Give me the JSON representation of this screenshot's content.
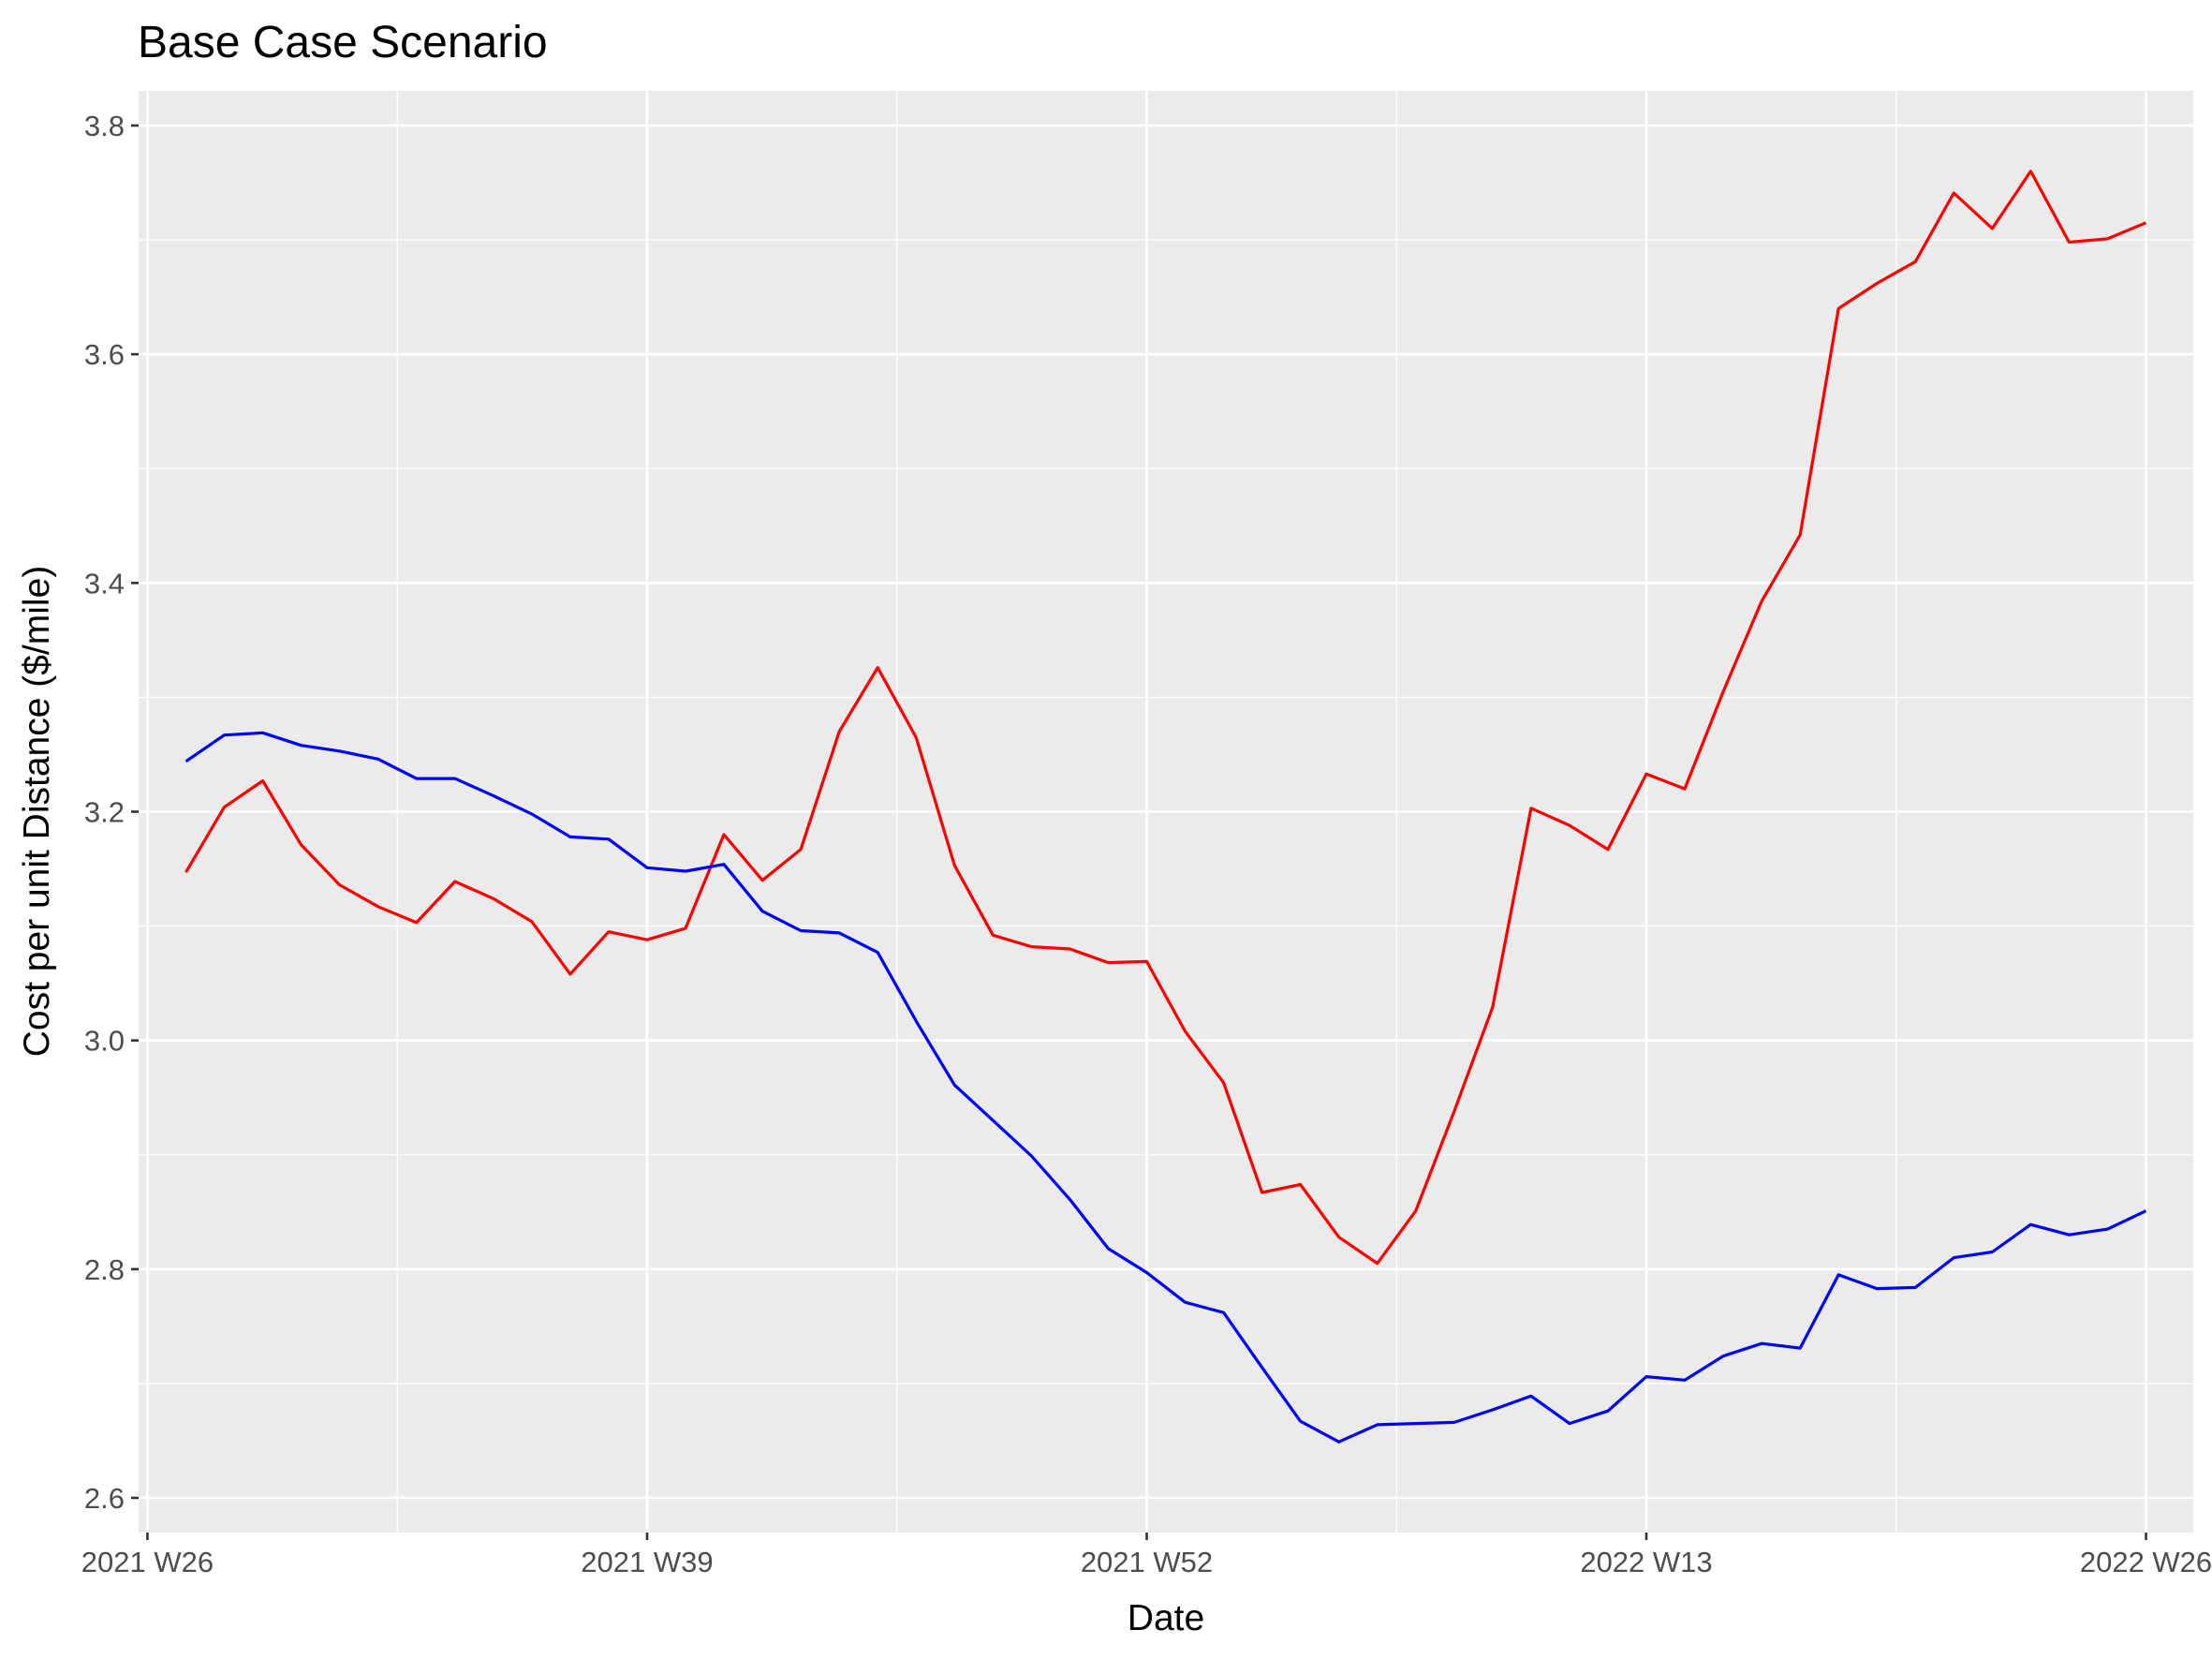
{
  "chart_data": {
    "type": "line",
    "title": "Base Case Scenario",
    "xlabel": "Date",
    "ylabel": "Cost per unit Distance ($/mile)",
    "x_unit": "ISO week",
    "x_ticks": [
      {
        "value": "2021-W26",
        "label": "2021 W26"
      },
      {
        "value": "2021-W39",
        "label": "2021 W39"
      },
      {
        "value": "2021-W52",
        "label": "2021 W52"
      },
      {
        "value": "2022-W13",
        "label": "2022 W13"
      },
      {
        "value": "2022-W26",
        "label": "2022 W26"
      }
    ],
    "xlim": [
      "2021-W26",
      "2022-W27"
    ],
    "y_ticks": [
      2.6,
      2.8,
      3.0,
      3.2,
      3.4,
      3.6,
      3.8
    ],
    "y_tick_labels": [
      "2.6",
      "2.8",
      "3.0",
      "3.2",
      "3.4",
      "3.6",
      "3.8"
    ],
    "ylim": [
      2.6,
      3.8
    ],
    "grid": true,
    "background": "#ebebeb",
    "x": [
      "2021-W27",
      "2021-W28",
      "2021-W29",
      "2021-W30",
      "2021-W31",
      "2021-W32",
      "2021-W33",
      "2021-W34",
      "2021-W35",
      "2021-W36",
      "2021-W37",
      "2021-W38",
      "2021-W39",
      "2021-W40",
      "2021-W41",
      "2021-W42",
      "2021-W43",
      "2021-W44",
      "2021-W45",
      "2021-W46",
      "2021-W47",
      "2021-W48",
      "2021-W49",
      "2021-W50",
      "2021-W51",
      "2021-W52",
      "2022-W01",
      "2022-W02",
      "2022-W03",
      "2022-W04",
      "2022-W05",
      "2022-W06",
      "2022-W07",
      "2022-W08",
      "2022-W09",
      "2022-W10",
      "2022-W11",
      "2022-W12",
      "2022-W13",
      "2022-W14",
      "2022-W15",
      "2022-W16",
      "2022-W17",
      "2022-W18",
      "2022-W19",
      "2022-W20",
      "2022-W21",
      "2022-W22",
      "2022-W23",
      "2022-W24",
      "2022-W25",
      "2022-W26"
    ],
    "series": [
      {
        "color": "#ff0000",
        "values": [
          3.147,
          3.204,
          3.227,
          3.171,
          3.136,
          3.117,
          3.103,
          3.139,
          3.124,
          3.104,
          3.058,
          3.095,
          3.088,
          3.098,
          3.18,
          3.14,
          3.167,
          3.27,
          3.326,
          3.265,
          3.153,
          3.092,
          3.082,
          3.08,
          3.068,
          3.069,
          3.008,
          2.963,
          2.867,
          2.874,
          2.828,
          2.805,
          2.851,
          2.938,
          3.029,
          3.203,
          3.188,
          3.167,
          3.233,
          3.22,
          3.305,
          3.384,
          3.442,
          3.64,
          3.662,
          3.681,
          3.741,
          3.71,
          3.76,
          3.698,
          3.701,
          3.715
        ]
      },
      {
        "color": "#0000ff",
        "values": [
          3.244,
          3.267,
          3.269,
          3.258,
          3.253,
          3.246,
          3.229,
          3.229,
          3.214,
          3.198,
          3.178,
          3.176,
          3.151,
          3.148,
          3.154,
          3.113,
          3.096,
          3.094,
          3.077,
          3.017,
          2.961,
          2.93,
          2.899,
          2.861,
          2.818,
          2.797,
          2.771,
          2.762,
          2.714,
          2.667,
          2.649,
          2.664,
          2.665,
          2.666,
          2.677,
          2.689,
          2.665,
          2.676,
          2.706,
          2.703,
          2.724,
          2.735,
          2.731,
          2.795,
          2.783,
          2.784,
          2.81,
          2.815,
          2.839,
          2.83,
          2.835,
          2.851
        ]
      }
    ]
  }
}
